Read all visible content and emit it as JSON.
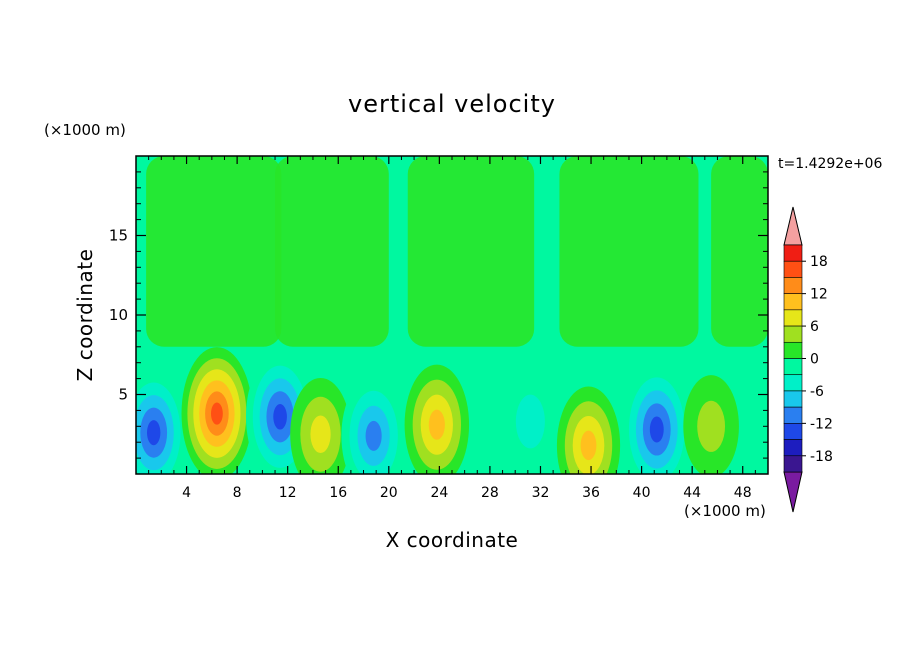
{
  "chart_data": {
    "type": "heatmap",
    "title": "vertical velocity",
    "xlabel": "X coordinate",
    "ylabel": "Z coordinate",
    "x_unit": "(×1000 m)",
    "y_unit": "(×1000 m)",
    "time_label": "t=1.4292e+06",
    "xlim": [
      0,
      50
    ],
    "ylim": [
      0,
      20
    ],
    "x_ticks": [
      4,
      8,
      12,
      16,
      20,
      24,
      28,
      32,
      36,
      40,
      44,
      48
    ],
    "y_ticks": [
      5,
      10,
      15
    ],
    "colorbar": {
      "levels": [
        -21,
        -18,
        -15,
        -12,
        -9,
        -6,
        -3,
        0,
        3,
        6,
        9,
        12,
        15,
        18,
        21
      ],
      "tick_labels": [
        -18,
        -12,
        -6,
        0,
        6,
        12,
        18
      ],
      "colors": [
        "#7a1ba0",
        "#3a1690",
        "#1d1dbf",
        "#1e48e8",
        "#2a7ff0",
        "#19c8ec",
        "#00f0c8",
        "#00f8a0",
        "#28e628",
        "#a0e020",
        "#e6e619",
        "#ffc01e",
        "#ff8c19",
        "#ff5014",
        "#f01e14",
        "#f4a0a0"
      ]
    },
    "features": [
      {
        "x": 1.4,
        "z": 2.6,
        "value": -13
      },
      {
        "x": 6.4,
        "z": 3.8,
        "value": 16
      },
      {
        "x": 11.4,
        "z": 3.6,
        "value": -14
      },
      {
        "x": 14.6,
        "z": 2.5,
        "value": 8
      },
      {
        "x": 18.8,
        "z": 2.4,
        "value": -11
      },
      {
        "x": 23.8,
        "z": 3.1,
        "value": 11
      },
      {
        "x": 31.2,
        "z": 3.3,
        "value": -6
      },
      {
        "x": 35.8,
        "z": 1.8,
        "value": 10
      },
      {
        "x": 41.2,
        "z": 2.8,
        "value": -15
      },
      {
        "x": 45.5,
        "z": 3.0,
        "value": 4
      }
    ]
  }
}
